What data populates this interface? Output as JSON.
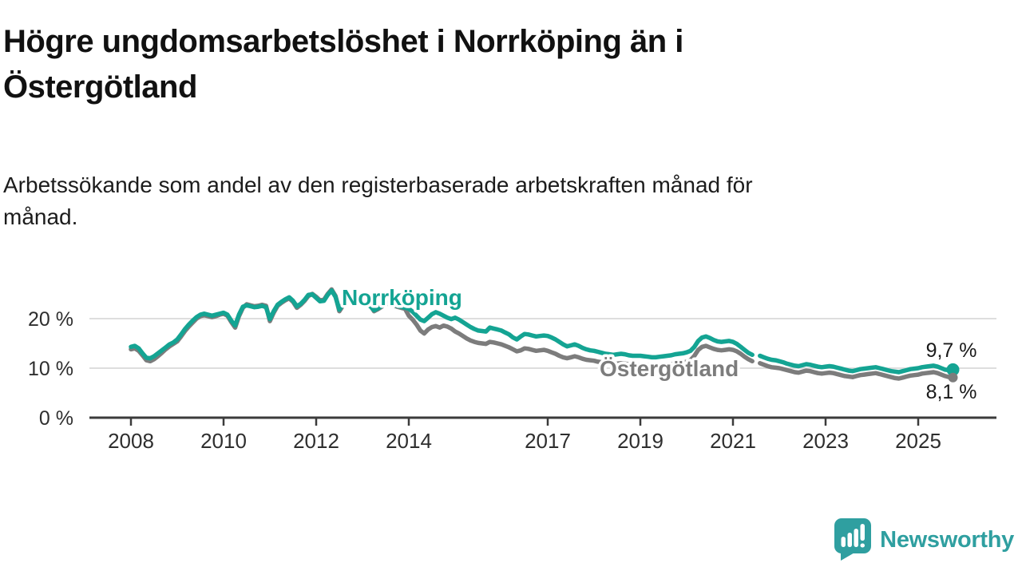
{
  "header": {
    "title_lines": [
      "Högre ungdomsarbetslöshet i Norrköping än i",
      "Östergötland"
    ],
    "subtitle_lines": [
      "Arbetssökande som andel av den registerbaserade arbetskraften månad för",
      "månad."
    ]
  },
  "footer": {
    "brand": "Newsworthy",
    "color": "#2f9fa0"
  },
  "chart_data": {
    "type": "line",
    "unit": "%",
    "frequency": "monthly",
    "x_start": "2008-01",
    "x_end": "2025-10",
    "data_gap": "2021-07",
    "ylim": [
      0,
      27
    ],
    "grid": "horizontal",
    "y_ticks": [
      {
        "value": 0,
        "label": "0 %"
      },
      {
        "value": 10,
        "label": "10 %"
      },
      {
        "value": 20,
        "label": "20 %"
      }
    ],
    "x_ticks": [
      {
        "year": 2008,
        "label": "2008"
      },
      {
        "year": 2010,
        "label": "2010"
      },
      {
        "year": 2012,
        "label": "2012"
      },
      {
        "year": 2014,
        "label": "2014"
      },
      {
        "year": 2017,
        "label": "2017"
      },
      {
        "year": 2019,
        "label": "2019"
      },
      {
        "year": 2021,
        "label": "2021"
      },
      {
        "year": 2023,
        "label": "2023"
      },
      {
        "year": 2025,
        "label": "2025"
      }
    ],
    "series": [
      {
        "name": "Norrköping",
        "color": "#14a493",
        "end_label": "9,7 %",
        "last_value": 9.7,
        "values": [
          14.3,
          14.5,
          14.0,
          13.0,
          12.1,
          12.0,
          12.4,
          13.0,
          13.6,
          14.2,
          14.8,
          15.2,
          15.8,
          16.8,
          17.9,
          18.8,
          19.6,
          20.3,
          20.8,
          21.0,
          20.8,
          20.6,
          20.8,
          21.0,
          21.2,
          20.8,
          19.6,
          18.6,
          20.8,
          22.4,
          22.7,
          22.5,
          22.3,
          22.4,
          22.6,
          22.3,
          19.9,
          21.5,
          22.8,
          23.4,
          23.9,
          24.3,
          23.6,
          22.5,
          23.0,
          23.8,
          24.8,
          24.9,
          24.2,
          23.5,
          23.6,
          24.8,
          25.7,
          24.4,
          21.8,
          23.0,
          23.6,
          23.3,
          23.0,
          23.2,
          23.5,
          23.1,
          22.5,
          21.7,
          22.1,
          22.6,
          23.1,
          23.3,
          22.9,
          22.6,
          22.4,
          22.2,
          22.0,
          21.4,
          20.6,
          19.8,
          19.5,
          20.2,
          20.9,
          21.3,
          21.0,
          20.6,
          20.2,
          19.9,
          20.2,
          19.8,
          19.3,
          18.8,
          18.3,
          17.9,
          17.6,
          17.5,
          17.4,
          18.2,
          18.0,
          17.8,
          17.6,
          17.2,
          16.8,
          16.2,
          15.8,
          16.4,
          16.9,
          16.8,
          16.6,
          16.4,
          16.5,
          16.6,
          16.5,
          16.2,
          15.8,
          15.3,
          14.8,
          14.4,
          14.6,
          14.8,
          14.5,
          14.1,
          13.8,
          13.6,
          13.5,
          13.3,
          13.1,
          12.9,
          12.8,
          12.7,
          12.8,
          12.9,
          12.8,
          12.6,
          12.5,
          12.5,
          12.5,
          12.4,
          12.3,
          12.2,
          12.2,
          12.3,
          12.4,
          12.5,
          12.6,
          12.8,
          12.9,
          13.0,
          13.2,
          13.5,
          14.3,
          15.5,
          16.2,
          16.4,
          16.1,
          15.7,
          15.4,
          15.3,
          15.4,
          15.5,
          15.3,
          14.9,
          14.3,
          13.7,
          13.1,
          12.7,
          null,
          12.5,
          12.2,
          11.9,
          11.7,
          11.6,
          11.4,
          11.2,
          10.9,
          10.7,
          10.5,
          10.4,
          10.6,
          10.8,
          10.7,
          10.5,
          10.3,
          10.2,
          10.3,
          10.4,
          10.3,
          10.1,
          9.9,
          9.7,
          9.5,
          9.4,
          9.6,
          9.8,
          9.9,
          10.0,
          10.1,
          10.2,
          10.0,
          9.8,
          9.6,
          9.4,
          9.3,
          9.2,
          9.4,
          9.6,
          9.8,
          9.9,
          10.0,
          10.2,
          10.3,
          10.4,
          10.5,
          10.3,
          10.0,
          9.7,
          9.6,
          9.7
        ]
      },
      {
        "name": "Östergötland",
        "color": "#7c7c7c",
        "end_label": "8,1 %",
        "last_value": 8.1,
        "values": [
          13.8,
          14.0,
          13.5,
          12.6,
          11.6,
          11.4,
          11.8,
          12.4,
          13.1,
          13.8,
          14.4,
          14.9,
          15.4,
          16.4,
          17.5,
          18.4,
          19.2,
          20.0,
          20.5,
          20.7,
          20.5,
          20.3,
          20.5,
          20.8,
          21.0,
          20.6,
          19.3,
          18.2,
          20.5,
          22.2,
          22.9,
          22.7,
          22.5,
          22.6,
          22.8,
          22.6,
          19.5,
          21.2,
          22.6,
          23.2,
          23.7,
          24.1,
          23.4,
          22.2,
          22.8,
          23.6,
          24.6,
          25.0,
          24.4,
          23.7,
          23.8,
          25.0,
          25.9,
          24.6,
          21.5,
          22.7,
          23.3,
          23.5,
          23.2,
          23.4,
          23.7,
          23.3,
          22.7,
          21.5,
          21.9,
          22.4,
          22.9,
          23.1,
          22.7,
          22.4,
          22.2,
          22.0,
          20.6,
          19.8,
          18.8,
          17.6,
          17.0,
          17.8,
          18.3,
          18.5,
          18.2,
          18.6,
          18.4,
          18.0,
          17.4,
          17.0,
          16.5,
          16.0,
          15.6,
          15.3,
          15.1,
          15.0,
          14.9,
          15.3,
          15.2,
          15.0,
          14.8,
          14.5,
          14.2,
          13.8,
          13.4,
          13.6,
          14.0,
          13.9,
          13.7,
          13.5,
          13.6,
          13.7,
          13.5,
          13.2,
          12.9,
          12.5,
          12.2,
          12.0,
          12.2,
          12.4,
          12.2,
          11.9,
          11.7,
          11.6,
          11.5,
          11.3,
          11.2,
          11.0,
          10.9,
          10.8,
          10.9,
          11.0,
          10.9,
          10.8,
          10.7,
          10.7,
          10.7,
          10.6,
          10.6,
          10.5,
          10.5,
          10.6,
          10.7,
          10.8,
          10.8,
          10.9,
          11.0,
          11.1,
          11.3,
          11.6,
          12.5,
          13.7,
          14.3,
          14.5,
          14.2,
          13.9,
          13.7,
          13.6,
          13.7,
          13.8,
          13.7,
          13.4,
          12.9,
          12.3,
          11.8,
          11.4,
          null,
          11.0,
          10.7,
          10.4,
          10.2,
          10.1,
          10.0,
          9.8,
          9.6,
          9.4,
          9.2,
          9.1,
          9.3,
          9.5,
          9.4,
          9.2,
          9.0,
          8.9,
          9.0,
          9.1,
          9.0,
          8.8,
          8.6,
          8.4,
          8.3,
          8.2,
          8.4,
          8.6,
          8.7,
          8.8,
          8.9,
          9.0,
          8.8,
          8.6,
          8.4,
          8.2,
          8.0,
          7.9,
          8.1,
          8.3,
          8.5,
          8.6,
          8.7,
          8.9,
          9.0,
          9.1,
          9.2,
          9.0,
          8.7,
          8.4,
          8.2,
          8.1
        ]
      }
    ]
  }
}
